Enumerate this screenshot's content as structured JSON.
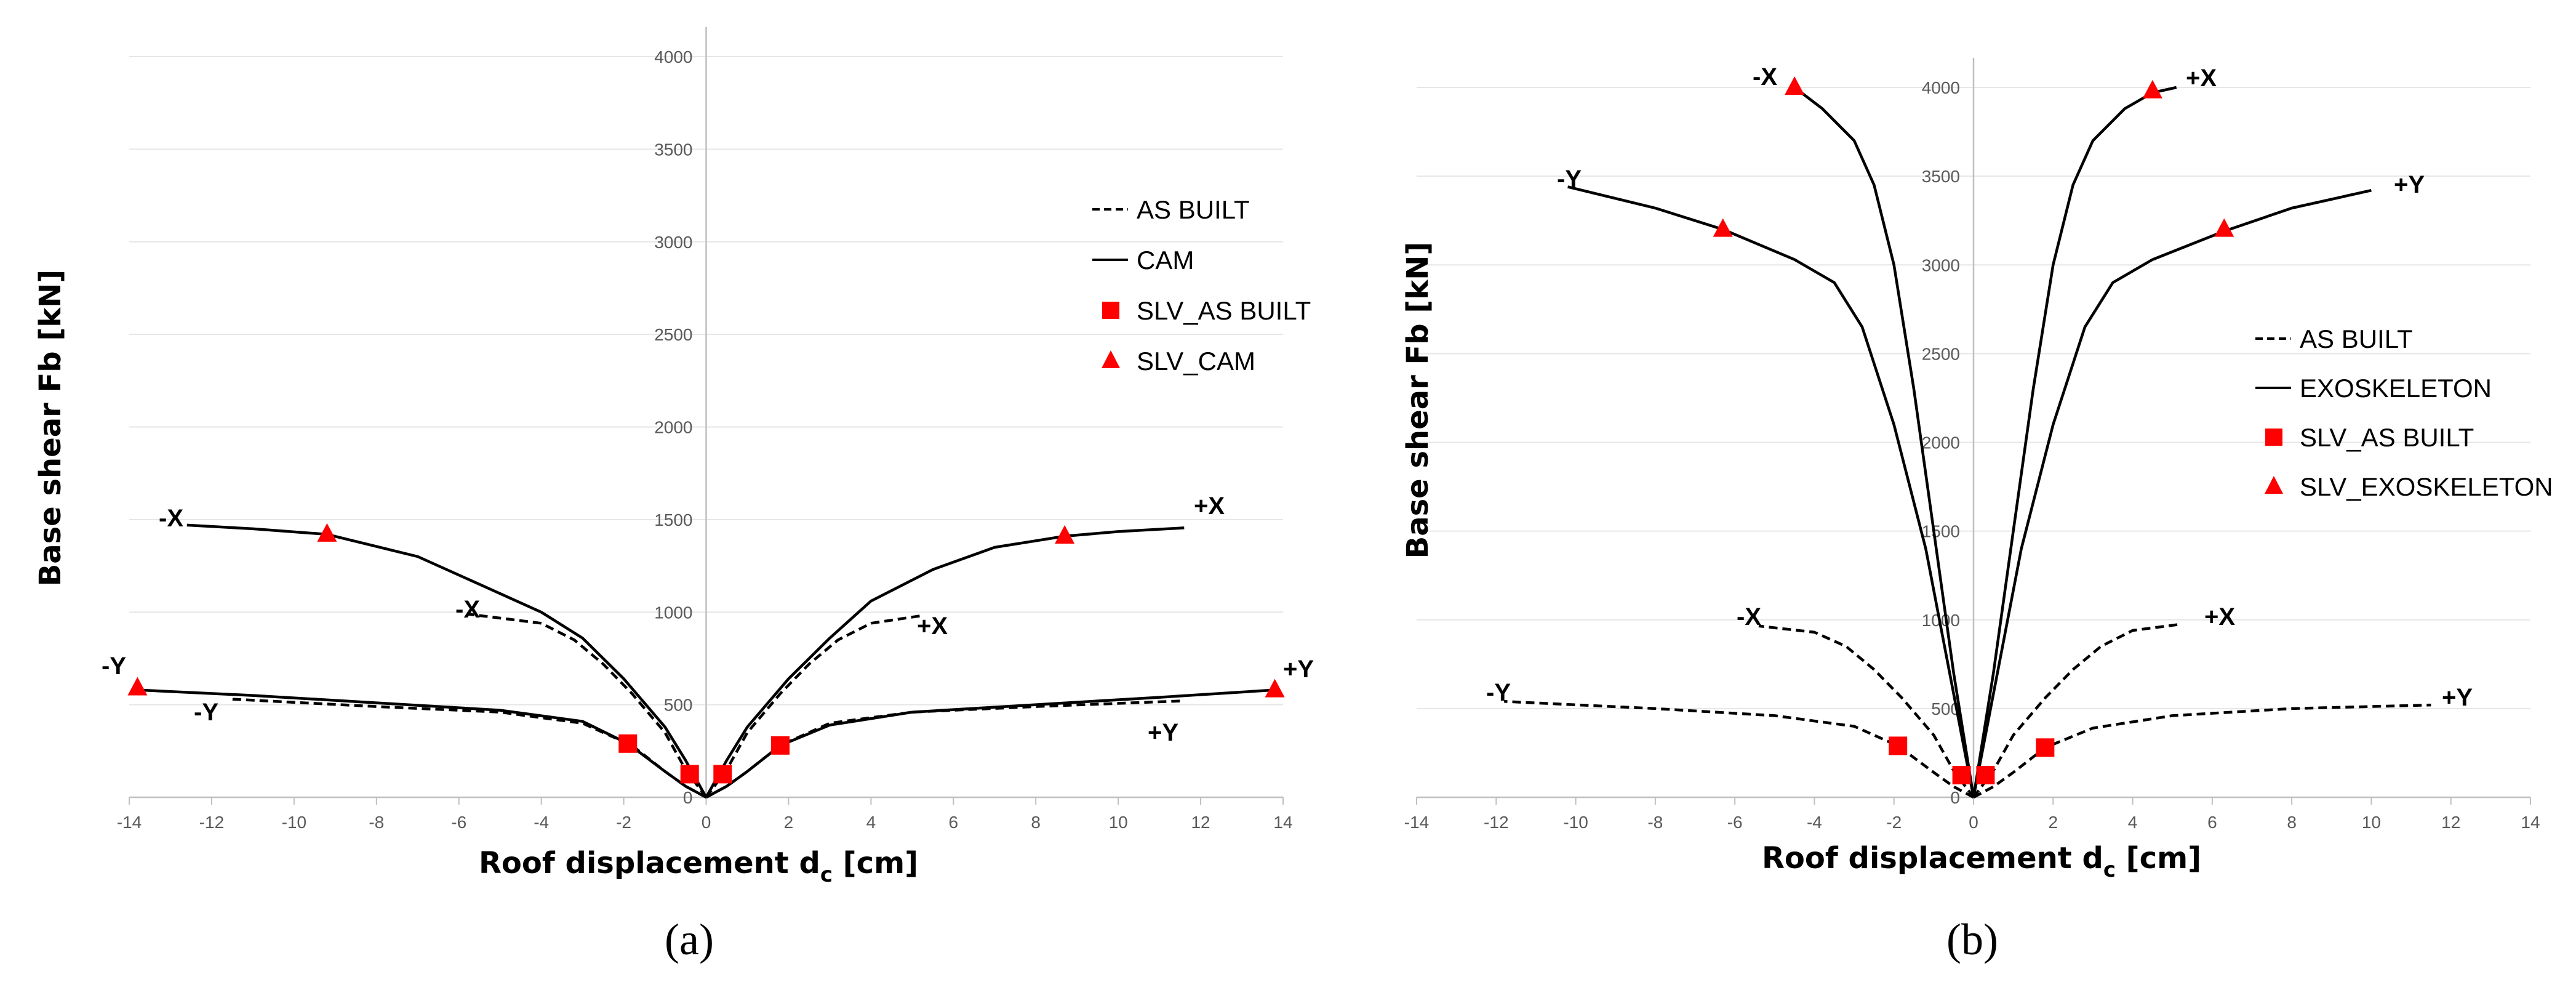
{
  "chart_data": [
    {
      "type": "line",
      "panel": "(a)",
      "xlabel_main": "Roof displacement d",
      "xlabel_sub": "c",
      "xlabel_unit": " [cm]",
      "ylabel": "Base shear Fb [kN]",
      "xlim": [
        -14,
        14
      ],
      "ylim": [
        0,
        4000
      ],
      "xticks": [
        -14,
        -12,
        -10,
        -8,
        -6,
        -4,
        -2,
        0,
        2,
        4,
        6,
        8,
        10,
        12,
        14
      ],
      "yticks": [
        0,
        500,
        1000,
        1500,
        2000,
        2500,
        3000,
        3500,
        4000
      ],
      "grid": true,
      "legend_position": "right",
      "legend": [
        {
          "label": "AS BUILT",
          "kind": "dashed"
        },
        {
          "label": "CAM",
          "kind": "solid"
        },
        {
          "label": "SLV_AS BUILT",
          "kind": "square"
        },
        {
          "label": "SLV_CAM",
          "kind": "triangle"
        }
      ],
      "series": [
        {
          "name": "AS BUILT +X",
          "style": "dashed",
          "label": "+X",
          "x": [
            0,
            0.5,
            1,
            1.8,
            2.5,
            3.2,
            4,
            5.2
          ],
          "y": [
            0,
            150,
            350,
            560,
            720,
            850,
            940,
            980
          ]
        },
        {
          "name": "AS BUILT -X",
          "style": "dashed",
          "label": "-X",
          "x": [
            0,
            -0.5,
            -1,
            -1.8,
            -2.5,
            -3.2,
            -4,
            -5.8
          ],
          "y": [
            0,
            150,
            350,
            560,
            720,
            850,
            940,
            990
          ]
        },
        {
          "name": "AS BUILT +Y",
          "style": "dashed",
          "label": "+Y",
          "x": [
            0,
            0.5,
            1,
            1.8,
            3,
            5,
            8,
            11.5
          ],
          "y": [
            0,
            60,
            140,
            280,
            400,
            460,
            490,
            520
          ]
        },
        {
          "name": "AS BUILT -Y",
          "style": "dashed",
          "label": "-Y",
          "x": [
            0,
            -0.5,
            -1,
            -1.8,
            -3,
            -5,
            -8,
            -11.5
          ],
          "y": [
            0,
            60,
            140,
            280,
            400,
            460,
            490,
            530
          ]
        },
        {
          "name": "CAM +X",
          "style": "solid",
          "label": "+X",
          "x": [
            0,
            0.5,
            1,
            2,
            3,
            4,
            5.5,
            7,
            8.7,
            10,
            11.6
          ],
          "y": [
            0,
            200,
            380,
            640,
            860,
            1060,
            1230,
            1350,
            1410,
            1435,
            1455
          ]
        },
        {
          "name": "CAM -X",
          "style": "solid",
          "label": "-X",
          "x": [
            0,
            -0.5,
            -1,
            -2,
            -3,
            -4,
            -5.5,
            -7,
            -9.2,
            -11,
            -12.6
          ],
          "y": [
            0,
            200,
            380,
            640,
            860,
            1000,
            1150,
            1300,
            1420,
            1450,
            1470
          ]
        },
        {
          "name": "CAM +Y",
          "style": "solid",
          "label": "+Y",
          "x": [
            0,
            0.5,
            1,
            1.8,
            3,
            5,
            8,
            11,
            13.8
          ],
          "y": [
            0,
            60,
            140,
            280,
            390,
            460,
            500,
            540,
            580
          ]
        },
        {
          "name": "CAM -Y",
          "style": "solid",
          "label": "-Y",
          "x": [
            0,
            -0.5,
            -1,
            -1.9,
            -3,
            -5,
            -8,
            -11,
            -13.8
          ],
          "y": [
            0,
            60,
            140,
            290,
            410,
            470,
            510,
            550,
            580
          ]
        }
      ],
      "markers": [
        {
          "series": "SLV_AS BUILT",
          "shape": "square",
          "x": [
            -1.9,
            -0.4,
            0.4,
            1.8
          ],
          "y": [
            290,
            125,
            125,
            280
          ]
        },
        {
          "series": "SLV_CAM",
          "shape": "triangle",
          "x": [
            -9.2,
            8.7,
            -13.8,
            13.8
          ],
          "y": [
            1420,
            1410,
            590,
            580
          ]
        }
      ]
    },
    {
      "type": "line",
      "panel": "(b)",
      "xlabel_main": "Roof displacement d",
      "xlabel_sub": "c",
      "xlabel_unit": " [cm]",
      "ylabel": "Base shear Fb [kN]",
      "xlim": [
        -14,
        14
      ],
      "ylim": [
        0,
        4000
      ],
      "xticks": [
        -14,
        -12,
        -10,
        -8,
        -6,
        -4,
        -2,
        0,
        2,
        4,
        6,
        8,
        10,
        12,
        14
      ],
      "yticks": [
        0,
        500,
        1000,
        1500,
        2000,
        2500,
        3000,
        3500,
        4000
      ],
      "grid": true,
      "legend_position": "right",
      "legend": [
        {
          "label": "AS BUILT",
          "kind": "dashed"
        },
        {
          "label": "EXOSKELETON",
          "kind": "solid"
        },
        {
          "label": "SLV_AS BUILT",
          "kind": "square"
        },
        {
          "label": "SLV_EXOSKELETON",
          "kind": "triangle"
        }
      ],
      "series": [
        {
          "name": "AS BUILT +X",
          "style": "dashed",
          "label": "+X",
          "x": [
            0,
            0.5,
            1,
            1.8,
            2.5,
            3.2,
            4,
            5.2
          ],
          "y": [
            0,
            150,
            350,
            560,
            720,
            850,
            940,
            975
          ]
        },
        {
          "name": "AS BUILT -X",
          "style": "dashed",
          "label": "-X",
          "x": [
            0,
            -0.5,
            -1,
            -1.8,
            -2.5,
            -3.2,
            -4,
            -5.4
          ],
          "y": [
            0,
            150,
            350,
            560,
            720,
            850,
            930,
            965
          ]
        },
        {
          "name": "AS BUILT +Y",
          "style": "dashed",
          "label": "+Y",
          "x": [
            0,
            0.5,
            1,
            1.8,
            3,
            5,
            8,
            11.5
          ],
          "y": [
            0,
            60,
            140,
            280,
            390,
            460,
            500,
            520
          ]
        },
        {
          "name": "AS BUILT -Y",
          "style": "dashed",
          "label": "-Y",
          "x": [
            0,
            -0.5,
            -1,
            -1.9,
            -3,
            -5,
            -8,
            -11.8
          ],
          "y": [
            0,
            60,
            140,
            290,
            400,
            460,
            500,
            540
          ]
        },
        {
          "name": "EXOSKELETON +X",
          "style": "solid",
          "label": "+X",
          "x": [
            0,
            0.5,
            1,
            1.5,
            2,
            2.5,
            3,
            3.8,
            4.5,
            5.1
          ],
          "y": [
            0,
            700,
            1500,
            2300,
            3000,
            3450,
            3700,
            3880,
            3970,
            4000
          ]
        },
        {
          "name": "EXOSKELETON -X",
          "style": "solid",
          "label": "-X",
          "x": [
            0,
            -0.5,
            -1,
            -1.5,
            -2,
            -2.5,
            -3,
            -3.8,
            -4.5
          ],
          "y": [
            0,
            700,
            1500,
            2300,
            3000,
            3450,
            3700,
            3880,
            4000
          ]
        },
        {
          "name": "EXOSKELETON +Y",
          "style": "solid",
          "label": "+Y",
          "x": [
            0,
            0.6,
            1.2,
            2,
            2.8,
            3.5,
            4.5,
            6.3,
            8,
            10
          ],
          "y": [
            0,
            700,
            1400,
            2100,
            2650,
            2900,
            3030,
            3190,
            3320,
            3420
          ]
        },
        {
          "name": "EXOSKELETON -Y",
          "style": "solid",
          "label": "-Y",
          "x": [
            0,
            -0.6,
            -1.2,
            -2,
            -2.8,
            -3.5,
            -4.5,
            -6.3,
            -8,
            -10.2
          ],
          "y": [
            0,
            700,
            1400,
            2100,
            2650,
            2900,
            3030,
            3200,
            3320,
            3440
          ]
        }
      ],
      "markers": [
        {
          "series": "SLV_AS BUILT",
          "shape": "square",
          "x": [
            -1.9,
            -0.3,
            0.3,
            1.8
          ],
          "y": [
            290,
            125,
            125,
            280
          ]
        },
        {
          "series": "SLV_EXOSKELETON",
          "shape": "triangle",
          "x": [
            -4.5,
            4.5,
            -6.3,
            6.3
          ],
          "y": [
            4000,
            3980,
            3200,
            3200
          ]
        }
      ]
    }
  ],
  "captions": [
    "(a)",
    "(b)"
  ]
}
